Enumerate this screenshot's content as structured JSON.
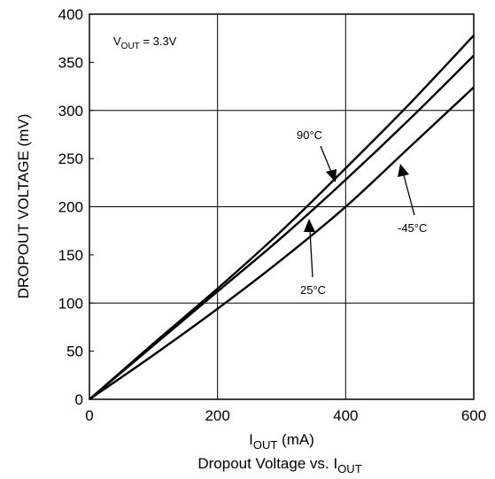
{
  "chart_data": {
    "type": "line",
    "title": "Dropout Voltage vs. I",
    "title_subscript": "OUT",
    "xlabel": "I",
    "xlabel_subscript": "OUT",
    "xlabel_unit": " (mA)",
    "ylabel": "DROPOUT VOLTAGE (mV)",
    "xlim": [
      0,
      600
    ],
    "ylim": [
      0,
      400
    ],
    "xticks": [
      0,
      200,
      400,
      600
    ],
    "yticks": [
      0,
      50,
      100,
      150,
      200,
      250,
      300,
      350,
      400
    ],
    "grid_x": [
      200,
      400
    ],
    "grid_y": [
      100,
      200,
      300
    ],
    "annotation": {
      "prefix": "V",
      "subscript": "OUT",
      "suffix": " = 3.3V"
    },
    "series": [
      {
        "name": "90°C",
        "x": [
          0,
          100,
          200,
          300,
          400,
          500,
          600
        ],
        "y": [
          0,
          58,
          115,
          175,
          240,
          307,
          378
        ]
      },
      {
        "name": "25°C",
        "x": [
          0,
          100,
          200,
          300,
          400,
          500,
          600
        ],
        "y": [
          0,
          56,
          112,
          168,
          228,
          291,
          357
        ]
      },
      {
        "name": "-45°C",
        "x": [
          0,
          100,
          200,
          300,
          400,
          500,
          600
        ],
        "y": [
          0,
          46,
          94,
          145,
          200,
          262,
          324
        ]
      }
    ]
  }
}
